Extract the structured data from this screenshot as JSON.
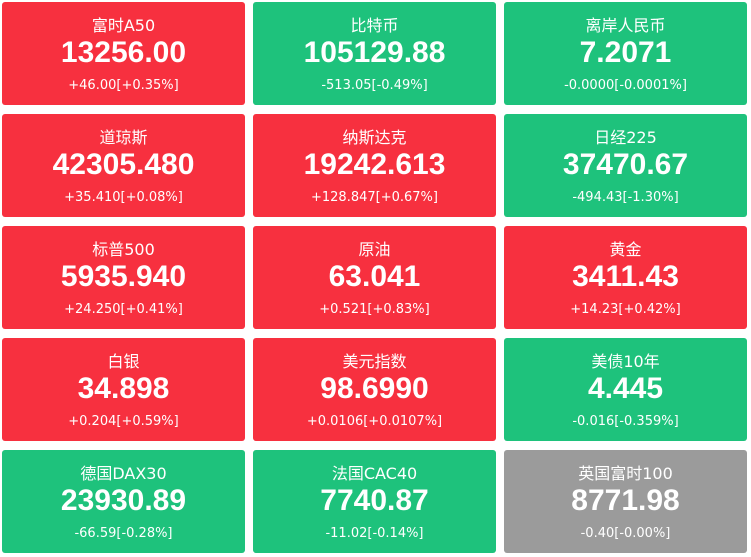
{
  "tiles": [
    {
      "name": "富时A50",
      "price": "13256.00",
      "change": "+46.00[+0.35%]",
      "color": "#f7303f"
    },
    {
      "name": "比特币",
      "price": "105129.88",
      "change": "-513.05[-0.49%]",
      "color": "#1ec27c"
    },
    {
      "name": "离岸人民币",
      "price": "7.2071",
      "change": "-0.0000[-0.0001%]",
      "color": "#1ec27c"
    },
    {
      "name": "道琼斯",
      "price": "42305.480",
      "change": "+35.410[+0.08%]",
      "color": "#f7303f"
    },
    {
      "name": "纳斯达克",
      "price": "19242.613",
      "change": "+128.847[+0.67%]",
      "color": "#f7303f"
    },
    {
      "name": "日经225",
      "price": "37470.67",
      "change": "-494.43[-1.30%]",
      "color": "#1ec27c"
    },
    {
      "name": "标普500",
      "price": "5935.940",
      "change": "+24.250[+0.41%]",
      "color": "#f7303f"
    },
    {
      "name": "原油",
      "price": "63.041",
      "change": "+0.521[+0.83%]",
      "color": "#f7303f"
    },
    {
      "name": "黄金",
      "price": "3411.43",
      "change": "+14.23[+0.42%]",
      "color": "#f7303f"
    },
    {
      "name": "白银",
      "price": "34.898",
      "change": "+0.204[+0.59%]",
      "color": "#f7303f"
    },
    {
      "name": "美元指数",
      "price": "98.6990",
      "change": "+0.0106[+0.0107%]",
      "color": "#f7303f"
    },
    {
      "name": "美债10年",
      "price": "4.445",
      "change": "-0.016[-0.359%]",
      "color": "#1ec27c"
    },
    {
      "name": "德国DAX30",
      "price": "23930.89",
      "change": "-66.59[-0.28%]",
      "color": "#1ec27c"
    },
    {
      "name": "法国CAC40",
      "price": "7740.87",
      "change": "-11.02[-0.14%]",
      "color": "#1ec27c"
    },
    {
      "name": "英国富时100",
      "price": "8771.98",
      "change": "-0.40[-0.00%]",
      "color": "#9b9b9b"
    }
  ]
}
